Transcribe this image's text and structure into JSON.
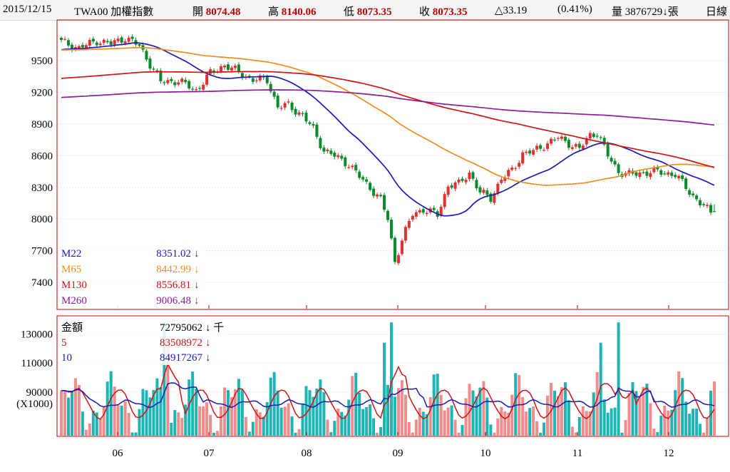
{
  "header": {
    "date": "2015/12/15",
    "symbol": "TWA00 加權指數",
    "open_label": "開",
    "open_value": "8074.48",
    "high_label": "高",
    "high_value": "8140.06",
    "low_label": "低",
    "low_value": "8073.35",
    "close_label": "收",
    "close_value": "8073.35",
    "change": "△33.19",
    "change_pct": "(0.41%)",
    "volume_label": "量",
    "volume_value": "3876729",
    "volume_arrow": "↓",
    "volume_unit": "張",
    "period": "日線"
  },
  "colors": {
    "up": "#e03030",
    "down": "#0a8a2a",
    "vol_up": "#f08c8c",
    "vol_down": "#1eb4b4",
    "ma22": "#1a1ab4",
    "ma65": "#f08c1e",
    "ma130": "#d01414",
    "ma260": "#8c1e96",
    "vma5": "#d01414",
    "vma10": "#1a1ab4",
    "frame": "#c00000"
  },
  "chart_data": [
    {
      "type": "candlestick",
      "title": "TWA00 加權指數",
      "ylim": [
        7150,
        9880
      ],
      "y_ticks": [
        "9500",
        "9200",
        "8900",
        "8600",
        "8300",
        "8000",
        "7700",
        "7400"
      ],
      "x_ticks": [
        "06",
        "07",
        "08",
        "09",
        "10",
        "11",
        "12"
      ],
      "series": [
        {
          "name": "M22",
          "value": "8351.02",
          "arrow": "↓",
          "key": "ma22"
        },
        {
          "name": "M65",
          "value": "8442.99",
          "arrow": "↓",
          "key": "ma65"
        },
        {
          "name": "M130",
          "value": "8556.81",
          "arrow": "↓",
          "key": "ma130"
        },
        {
          "name": "M260",
          "value": "9006.48",
          "arrow": "↓",
          "key": "ma260"
        }
      ],
      "last_candle": {
        "open": 8074.48,
        "high": 8140.06,
        "low": 8073.35,
        "close": 8073.35
      }
    },
    {
      "type": "bar",
      "title": "金額",
      "ylim": [
        60000,
        142000
      ],
      "y_ticks": [
        "130000",
        "110000",
        "90000"
      ],
      "y_unit": "(X1000)",
      "series": [
        {
          "name": "金額",
          "value": "72795062",
          "arrow": "↓ 千",
          "key": "none"
        },
        {
          "name": "5",
          "value": "83508972",
          "arrow": "↓",
          "key": "vma5"
        },
        {
          "name": "10",
          "value": "84917267",
          "arrow": "↓",
          "key": "vma10"
        }
      ]
    }
  ]
}
